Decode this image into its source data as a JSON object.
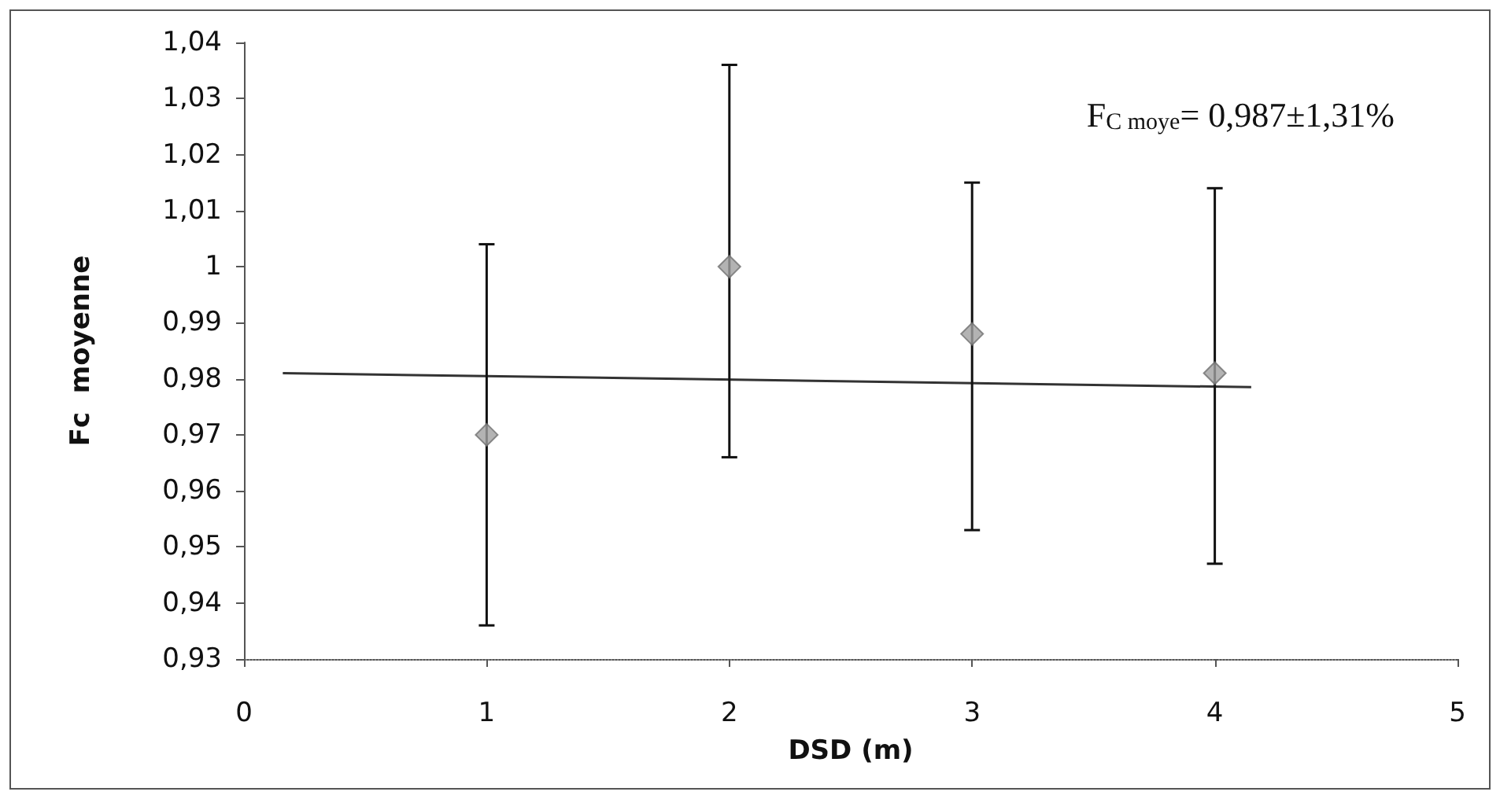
{
  "chart_data": {
    "type": "scatter",
    "xlabel": "DSD (m)",
    "ylabel": "Fc  moyenne",
    "series": [
      {
        "color": "#a0a0a0",
        "marker": "diamond",
        "x": [
          1,
          2,
          3,
          4
        ],
        "values": [
          0.97,
          1.0,
          0.988,
          0.981
        ],
        "errors": [
          [
            0.936,
            1.004
          ],
          [
            0.966,
            1.036
          ],
          [
            0.953,
            1.015
          ],
          [
            0.947,
            1.014
          ]
        ]
      },
      {
        "type": "line",
        "color": "#333333",
        "marker": "none",
        "x": [
          0.16,
          4.15
        ],
        "values": [
          0.981,
          0.9785
        ]
      }
    ],
    "annotations": [
      "F$_{C moye}$= 0,987±1,31%"
    ],
    "xlim": [
      0,
      5
    ],
    "xticks": [
      0,
      1,
      2,
      3,
      4,
      5
    ],
    "ylim": [
      0.93,
      1.04
    ],
    "yticks": [
      {
        "value": 0.93,
        "label": "0,93"
      },
      {
        "value": 0.94,
        "label": "0,94"
      },
      {
        "value": 0.95,
        "label": "0,95"
      },
      {
        "value": 0.96,
        "label": "0,96"
      },
      {
        "value": 0.97,
        "label": "0,97"
      },
      {
        "value": 0.98,
        "label": "0,98"
      },
      {
        "value": 0.99,
        "label": "0,99"
      },
      1,
      {
        "value": 1.01,
        "label": "1,01"
      },
      {
        "value": 1.02,
        "label": "1,02"
      },
      {
        "value": 1.03,
        "label": "1,03"
      },
      {
        "value": 1.04,
        "label": "1,04"
      }
    ],
    "grid": false
  }
}
